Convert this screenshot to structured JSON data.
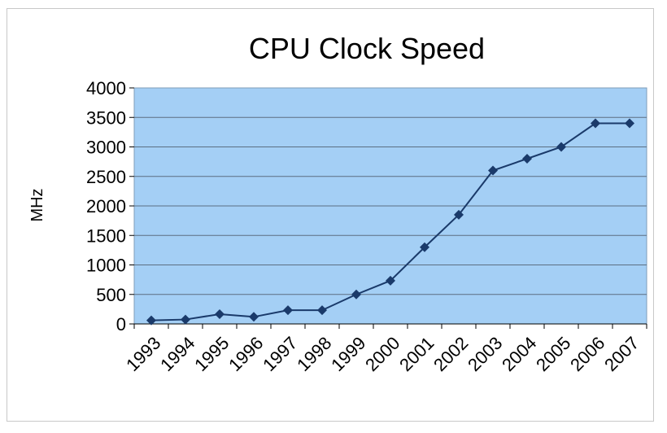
{
  "chart_data": {
    "type": "line",
    "title": "CPU Clock Speed",
    "xlabel": "",
    "ylabel": "MHz",
    "categories": [
      "1993",
      "1994",
      "1995",
      "1996",
      "1997",
      "1998",
      "1999",
      "2000",
      "2001",
      "2002",
      "2003",
      "2004",
      "2005",
      "2006",
      "2007"
    ],
    "values": [
      60,
      75,
      166,
      120,
      233,
      233,
      500,
      733,
      1300,
      1850,
      2600,
      2800,
      3000,
      3400,
      3400
    ],
    "ylim": [
      0,
      4000
    ],
    "yticks": [
      0,
      500,
      1000,
      1500,
      2000,
      2500,
      3000,
      3500,
      4000
    ],
    "grid": true,
    "legend": "none",
    "colors": {
      "plot_background": "#a4cff5",
      "line": "#1a3a6a",
      "marker": "#1a3a6a",
      "gridline": "#5c6f82"
    }
  }
}
